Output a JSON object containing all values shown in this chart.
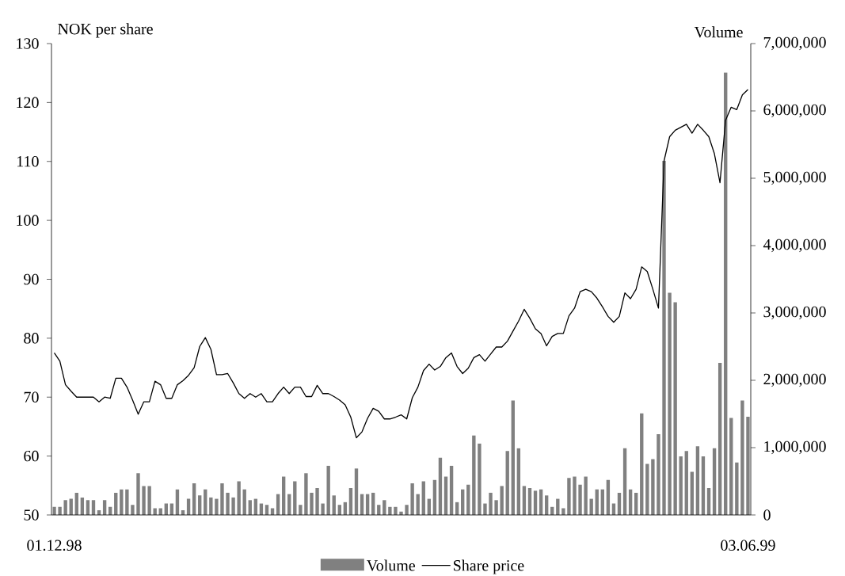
{
  "chart_data": {
    "type": "line",
    "ylabel": "NOK per share",
    "y2label": "Volume",
    "categories": [
      "01.12.98",
      null,
      null,
      null,
      null,
      null,
      null,
      null,
      null,
      null,
      null,
      null,
      null,
      null,
      null,
      null,
      null,
      null,
      null,
      null,
      null,
      null,
      null,
      null,
      null,
      null,
      null,
      null,
      null,
      null,
      null,
      null,
      null,
      null,
      null,
      null,
      null,
      null,
      null,
      null,
      null,
      null,
      null,
      null,
      null,
      null,
      null,
      null,
      null,
      null,
      null,
      null,
      null,
      null,
      null,
      null,
      null,
      null,
      null,
      null,
      null,
      null,
      null,
      null,
      null,
      null,
      null,
      null,
      null,
      null,
      null,
      null,
      null,
      null,
      null,
      null,
      null,
      null,
      null,
      null,
      null,
      null,
      null,
      null,
      null,
      null,
      null,
      null,
      null,
      null,
      null,
      null,
      null,
      null,
      null,
      null,
      null,
      null,
      null,
      null,
      null,
      null,
      null,
      null,
      null,
      null,
      null,
      null,
      null,
      null,
      null,
      null,
      null,
      null,
      null,
      null,
      null,
      null,
      null,
      null,
      null,
      null,
      null,
      null,
      "03.06.99"
    ],
    "series": [
      {
        "name": "Volume",
        "type": "bar",
        "axis": "y2",
        "color": "#808080",
        "values": [
          120000,
          120000,
          220000,
          240000,
          330000,
          260000,
          220000,
          220000,
          70000,
          220000,
          120000,
          330000,
          380000,
          380000,
          150000,
          620000,
          430000,
          430000,
          100000,
          100000,
          170000,
          170000,
          380000,
          70000,
          240000,
          470000,
          290000,
          380000,
          260000,
          240000,
          470000,
          330000,
          260000,
          500000,
          380000,
          220000,
          240000,
          170000,
          150000,
          100000,
          310000,
          570000,
          310000,
          500000,
          150000,
          620000,
          330000,
          400000,
          170000,
          730000,
          290000,
          150000,
          190000,
          400000,
          690000,
          310000,
          310000,
          330000,
          150000,
          220000,
          120000,
          120000,
          50000,
          150000,
          470000,
          310000,
          500000,
          240000,
          520000,
          850000,
          570000,
          730000,
          190000,
          380000,
          450000,
          1180000,
          1060000,
          170000,
          330000,
          220000,
          430000,
          950000,
          1700000,
          990000,
          430000,
          400000,
          360000,
          380000,
          290000,
          120000,
          240000,
          100000,
          550000,
          570000,
          450000,
          570000,
          240000,
          380000,
          380000,
          520000,
          170000,
          330000,
          990000,
          380000,
          330000,
          1510000,
          760000,
          830000,
          1200000,
          5260000,
          3300000,
          3160000,
          870000,
          950000,
          640000,
          1020000,
          870000,
          400000,
          990000,
          2260000,
          6570000,
          1440000,
          780000,
          1700000,
          1460000
        ]
      },
      {
        "name": "Share price",
        "color": "#000000",
        "values": [
          77.5,
          76.1,
          72.1,
          71.0,
          70,
          70,
          70,
          70,
          69.2,
          70,
          69.8,
          73.2,
          73.2,
          71.7,
          69.5,
          67.1,
          69.2,
          69.2,
          72.7,
          72.1,
          69.8,
          69.8,
          72.1,
          72.8,
          73.7,
          75.0,
          78.6,
          80.1,
          78.1,
          73.8,
          73.8,
          74.0,
          72.4,
          70.6,
          69.8,
          70.6,
          70.0,
          70.6,
          69.2,
          69.2,
          70.6,
          71.7,
          70.6,
          71.7,
          71.7,
          70.1,
          70.1,
          72.0,
          70.6,
          70.6,
          70.1,
          69.5,
          68.7,
          66.6,
          63.1,
          64.1,
          66.4,
          68.1,
          67.6,
          66.3,
          66.3,
          66.6,
          67.0,
          66.3,
          69.9,
          71.7,
          74.5,
          75.6,
          74.6,
          75.2,
          76.7,
          77.5,
          75.2,
          74.0,
          74.9,
          76.7,
          77.2,
          76.1,
          77.3,
          78.5,
          78.5,
          79.5,
          81.2,
          82.9,
          84.9,
          83.4,
          81.6,
          80.8,
          78.7,
          80.3,
          80.8,
          80.8,
          83.8,
          85.1,
          87.9,
          88.3,
          87.9,
          86.8,
          85.3,
          83.7,
          82.7,
          83.7,
          87.7,
          86.7,
          88.3,
          92.1,
          91.3,
          88.3,
          85.1,
          110.1,
          114.2,
          115.3,
          115.8,
          116.3,
          114.8,
          116.3,
          115.3,
          114.2,
          111.3,
          106.4,
          117.0,
          119.2,
          118.8,
          121.3,
          122.2
        ]
      }
    ],
    "ylim": [
      50,
      130
    ],
    "yticks": [
      50,
      60,
      70,
      80,
      90,
      100,
      110,
      120,
      130
    ],
    "y2lim": [
      0,
      7000000
    ],
    "y2ticks": [
      {
        "value": 0,
        "label": "0"
      },
      {
        "value": 1000000,
        "label": "1,000,000"
      },
      {
        "value": 2000000,
        "label": "2,000,000"
      },
      {
        "value": 3000000,
        "label": "3,000,000"
      },
      {
        "value": 4000000,
        "label": "4,000,000"
      },
      {
        "value": 5000000,
        "label": "5,000,000"
      },
      {
        "value": 6000000,
        "label": "6,000,000"
      },
      {
        "value": 7000000,
        "label": "7,000,000"
      }
    ],
    "grid": false,
    "legend": "bottom"
  }
}
